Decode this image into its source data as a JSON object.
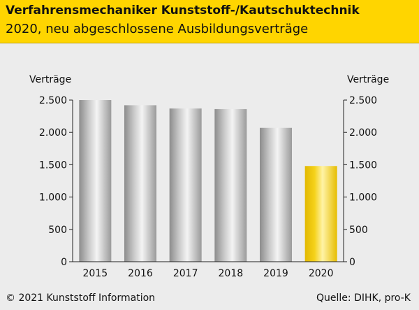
{
  "header": {
    "title": "Verfahrensmechaniker Kunststoff-/Kautschuktechnik",
    "subtitle": "2020, neu abgeschlossene Ausbildungsverträge"
  },
  "footer": {
    "copyright": "© 2021 Kunststoff Information",
    "source": "Quelle: DIHK, pro-K"
  },
  "colors": {
    "header_bg": "#ffd500",
    "bar_gray": "#b4b4b4",
    "bar_highlight": "#f2cc00"
  },
  "chart_data": {
    "type": "bar",
    "categories": [
      "2015",
      "2016",
      "2017",
      "2018",
      "2019",
      "2020"
    ],
    "values": [
      2500,
      2420,
      2370,
      2360,
      2070,
      1480
    ],
    "highlight_category": "2020",
    "ylabel_left": "Verträge",
    "ylabel_right": "Verträge",
    "ylim": [
      0,
      2500
    ],
    "ytick_values": [
      0,
      500,
      1000,
      1500,
      2000,
      2500
    ],
    "ytick_labels": [
      "0",
      "500",
      "1.000",
      "1.500",
      "2.000",
      "2.500"
    ],
    "grid": false
  }
}
